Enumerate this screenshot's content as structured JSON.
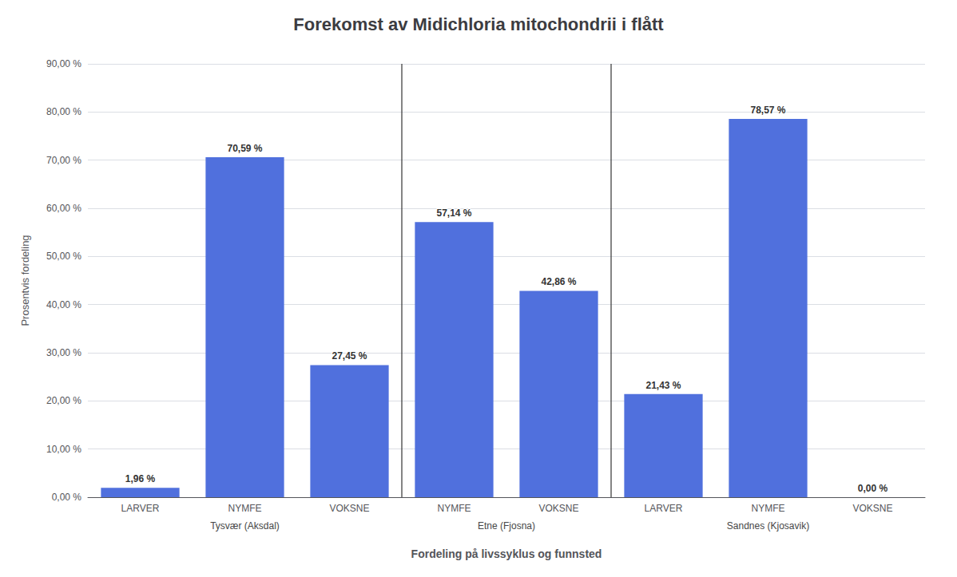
{
  "chart_data": {
    "type": "bar",
    "title": "Forekomst av Midichloria mitochondrii i flått",
    "categories": [
      "LARVER",
      "NYMFE",
      "VOKSNE",
      "NYMFE",
      "VOKSNE",
      "LARVER",
      "NYMFE",
      "VOKSNE"
    ],
    "groups": [
      "Tysvær (Aksdal)",
      "Tysvær (Aksdal)",
      "Tysvær (Aksdal)",
      "Etne (Fjosna)",
      "Etne (Fjosna)",
      "Sandnes (Kjosavik)",
      "Sandnes (Kjosavik)",
      "Sandnes (Kjosavik)"
    ],
    "values": [
      1.96,
      70.59,
      27.45,
      57.14,
      42.86,
      21.43,
      78.57,
      0.0
    ],
    "value_labels": [
      "1,96 %",
      "70,59 %",
      "27,45 %",
      "57,14 %",
      "42,86 %",
      "21,43 %",
      "78,57 %",
      "0,00 %"
    ],
    "data_labels": true,
    "ylabel": "Prosentvis fordeling",
    "xlabel": "Fordeling på livssyklus og funnsted",
    "ylim": [
      0,
      90
    ],
    "yticks": [
      {
        "value": 0,
        "label": "0,00 %"
      },
      {
        "value": 10,
        "label": "10,00 %"
      },
      {
        "value": 20,
        "label": "20,00 %"
      },
      {
        "value": 30,
        "label": "30,00 %"
      },
      {
        "value": 40,
        "label": "40,00 %"
      },
      {
        "value": 50,
        "label": "50,00 %"
      },
      {
        "value": 60,
        "label": "60,00 %"
      },
      {
        "value": 70,
        "label": "70,00 %"
      },
      {
        "value": 80,
        "label": "80,00 %"
      },
      {
        "value": 90,
        "label": "90,00 %"
      }
    ],
    "grid": true
  }
}
